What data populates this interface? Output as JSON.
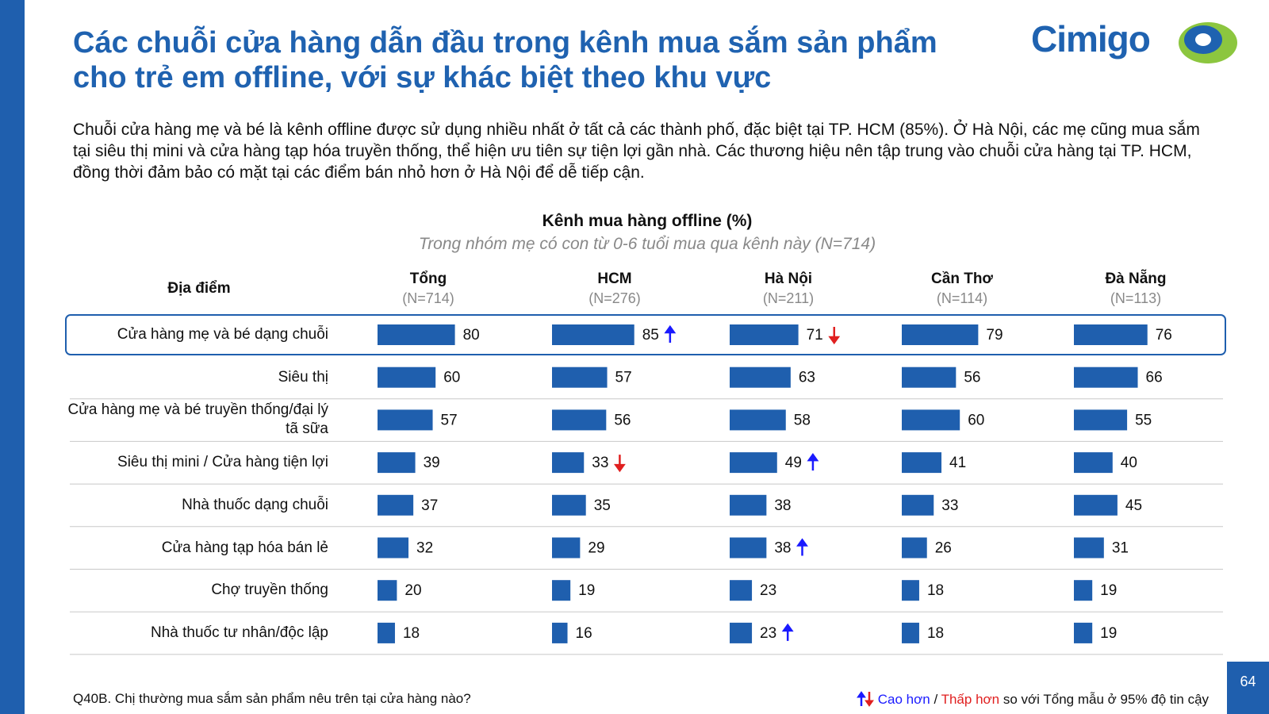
{
  "header": {
    "title_lines": [
      "Các chuỗi cửa hàng dẫn đầu trong kênh mua sắm sản phẩm",
      "cho trẻ em offline, với sự khác biệt theo khu vực"
    ],
    "logo": "Cimigo"
  },
  "body": "Chuỗi cửa hàng mẹ và bé là kênh offline được sử dụng nhiều nhất ở tất cả các thành phố, đặc biệt tại TP. HCM (85%). Ở Hà Nội, các mẹ cũng mua sắm tại siêu thị mini và cửa hàng tạp hóa truyền thống, thể hiện ưu tiên sự tiện lợi gần nhà. Các thương hiệu nên tập trung vào chuỗi cửa hàng tại TP. HCM, đồng thời đảm bảo có mặt tại các điểm bán nhỏ hơn ở Hà Nội để dễ tiếp cận.",
  "chart_data": {
    "type": "bar",
    "orientation": "horizontal",
    "title": "Kênh mua hàng offline (%)",
    "subtitle": "Trong nhóm mẹ có con từ 0-6 tuổi mua qua kênh này (N=714)",
    "category_header": "Địa điểm",
    "categories": [
      "Cửa hàng mẹ và bé dạng chuỗi",
      "Siêu thị",
      "Cửa hàng mẹ và bé truyền thống/đại lý tã sữa",
      "Siêu thị mini / Cửa hàng tiện lợi",
      "Nhà thuốc dạng chuỗi",
      "Cửa hàng tạp hóa bán lẻ",
      "Chợ truyền thống",
      "Nhà thuốc tư nhân/độc lập"
    ],
    "highlight": 0,
    "series": [
      {
        "name": "Tổng",
        "sample": "(N=714)",
        "color": "#1f5fae",
        "values": [
          80,
          60,
          57,
          39,
          37,
          32,
          20,
          18
        ],
        "significance": [
          null,
          null,
          null,
          null,
          null,
          null,
          null,
          null
        ]
      },
      {
        "name": "HCM",
        "sample": "(N=276)",
        "color": "#1f5fae",
        "values": [
          85,
          57,
          56,
          33,
          35,
          29,
          19,
          16
        ],
        "significance": [
          "up",
          null,
          null,
          "down",
          null,
          null,
          null,
          null
        ]
      },
      {
        "name": "Hà Nội",
        "sample": "(N=211)",
        "color": "#1f5fae",
        "values": [
          71,
          63,
          58,
          49,
          38,
          38,
          23,
          23
        ],
        "significance": [
          "down",
          null,
          null,
          "up",
          null,
          "up",
          null,
          "up"
        ]
      },
      {
        "name": "Cần Thơ",
        "sample": "(N=114)",
        "color": "#1f5fae",
        "values": [
          79,
          56,
          60,
          41,
          33,
          26,
          18,
          18
        ],
        "significance": [
          null,
          null,
          null,
          null,
          null,
          null,
          null,
          null
        ]
      },
      {
        "name": "Đà Nẵng",
        "sample": "(N=113)",
        "color": "#1f5fae",
        "values": [
          76,
          66,
          55,
          40,
          45,
          31,
          19,
          19
        ],
        "significance": [
          null,
          null,
          null,
          null,
          null,
          null,
          null,
          null
        ]
      }
    ]
  },
  "footnote": "Q40B. Chị thường mua sắm sản phẩm nêu trên tại cửa hàng nào?",
  "legend": {
    "higher": "Cao hơn",
    "separator": "/",
    "lower": "Thấp hơn",
    "note": "so với Tổng mẫu ở 95% độ tin cậy",
    "higher_color": "#1a1aff",
    "lower_color": "#e02020"
  },
  "page_number": 64
}
